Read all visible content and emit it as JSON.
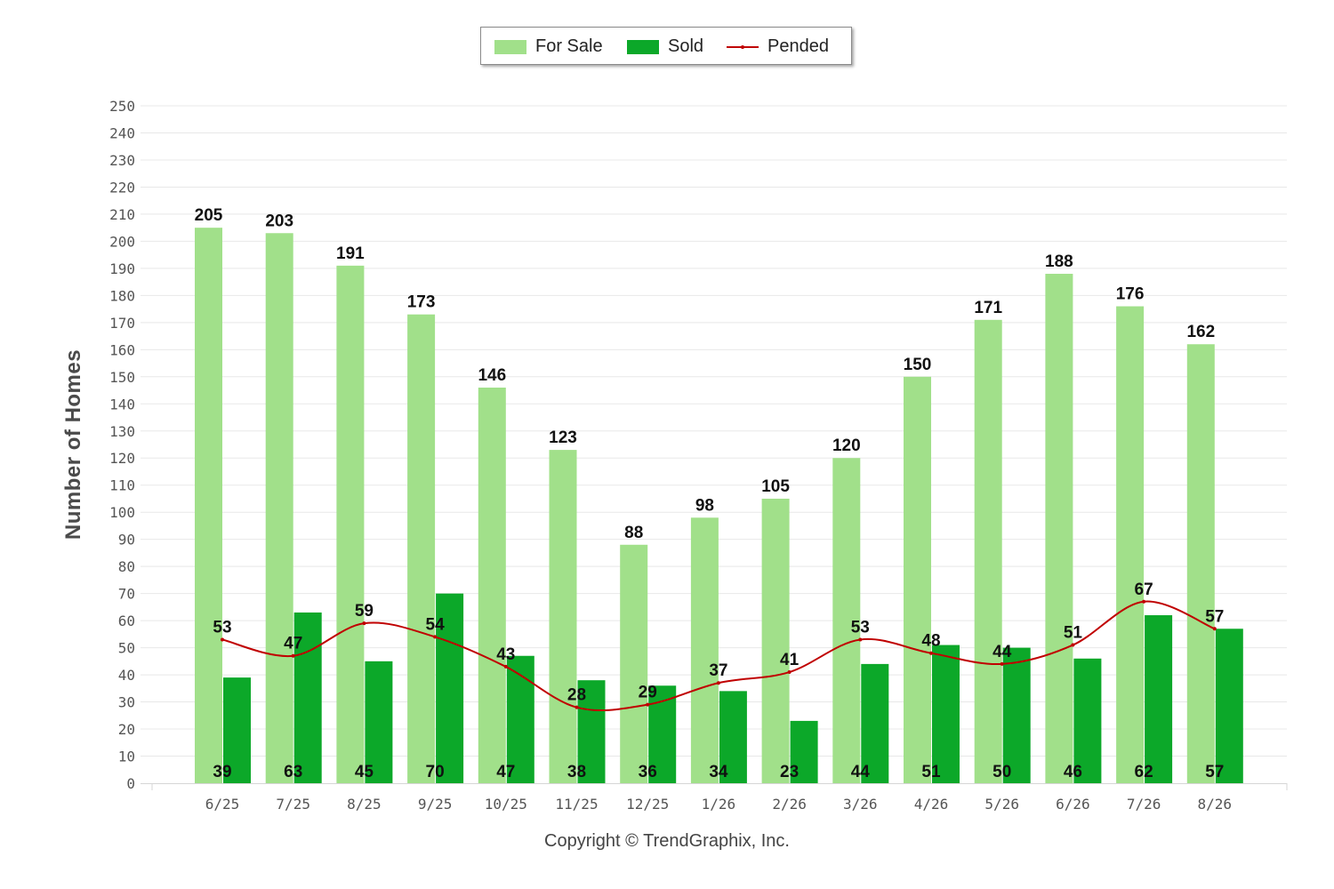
{
  "legend": {
    "for_sale": "For Sale",
    "sold": "Sold",
    "pended": "Pended"
  },
  "colors": {
    "for_sale": "#a1e08a",
    "sold": "#0ca829",
    "pended": "#c00000",
    "grid": "#e8e8e8"
  },
  "footer": {
    "copyright": "Copyright © TrendGraphix, Inc."
  },
  "chart_data": {
    "type": "bar",
    "categories": [
      "6/25",
      "7/25",
      "8/25",
      "9/25",
      "10/25",
      "11/25",
      "12/25",
      "1/26",
      "2/26",
      "3/26",
      "4/26",
      "5/26",
      "6/26",
      "7/26",
      "8/26"
    ],
    "series": [
      {
        "name": "For Sale",
        "type": "bar",
        "values": [
          205,
          203,
          191,
          173,
          146,
          123,
          88,
          98,
          105,
          120,
          150,
          171,
          188,
          176,
          162
        ]
      },
      {
        "name": "Sold",
        "type": "bar",
        "values": [
          39,
          63,
          45,
          70,
          47,
          38,
          36,
          34,
          23,
          44,
          51,
          50,
          46,
          62,
          57
        ]
      },
      {
        "name": "Pended",
        "type": "line",
        "values": [
          53,
          47,
          59,
          54,
          43,
          28,
          29,
          37,
          41,
          53,
          48,
          44,
          51,
          67,
          57
        ]
      }
    ],
    "title": "",
    "xlabel": "",
    "ylabel": "Number of Homes",
    "ylim": [
      0,
      250
    ],
    "ytick_step": 10,
    "grid": true,
    "legend_position": "top-center"
  }
}
